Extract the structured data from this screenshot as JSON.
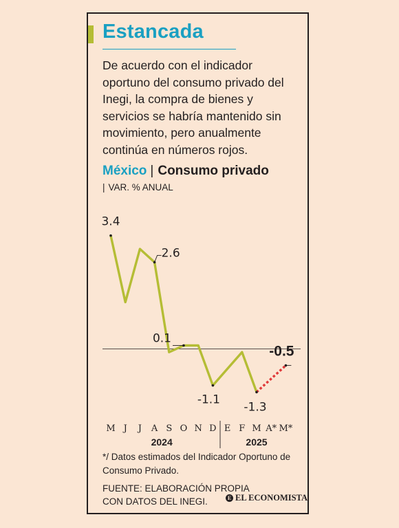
{
  "title": "Estancada",
  "description": "De acuerdo con el indicador oportuno del consumo privado del Inegi, la compra de bienes y servicios se habría mantenido sin movimiento, pero anualmente continúa en números rojos.",
  "subtitle": {
    "country": "México",
    "separator": "|",
    "indicator": "Consumo privado"
  },
  "unit": {
    "bar": "|",
    "label": "VAR. % ANUAL"
  },
  "chart_data": {
    "type": "line",
    "categories": [
      "M",
      "J",
      "J",
      "A",
      "S",
      "O",
      "N",
      "D",
      "E",
      "F",
      "M",
      "A*",
      "M*"
    ],
    "years": [
      {
        "label": "2024",
        "from": 0,
        "to": 7
      },
      {
        "label": "2025",
        "from": 8,
        "to": 12
      }
    ],
    "series": [
      {
        "style": "actual",
        "color": "#b5bd35",
        "values": [
          3.4,
          1.4,
          3.0,
          2.6,
          -0.1,
          0.1,
          0.1,
          -1.1,
          -0.6,
          -0.1,
          -1.3,
          null,
          null
        ]
      },
      {
        "style": "estimated",
        "color": "#e03a3a",
        "values": [
          null,
          null,
          null,
          null,
          null,
          null,
          null,
          null,
          null,
          null,
          -1.3,
          -0.9,
          -0.5
        ]
      }
    ],
    "labels": [
      {
        "index": 0,
        "value": 3.4,
        "text": "3.4"
      },
      {
        "index": 3,
        "value": 2.6,
        "text": "2.6"
      },
      {
        "index": 5,
        "value": 0.1,
        "text": "0.1"
      },
      {
        "index": 7,
        "value": -1.1,
        "text": "-1.1"
      },
      {
        "index": 10,
        "value": -1.3,
        "text": "-1.3"
      },
      {
        "index": 12,
        "value": -0.5,
        "text": "-0.5"
      }
    ],
    "ylim": [
      -1.5,
      3.6
    ],
    "zero_line": true,
    "xlabel": "",
    "ylabel": ""
  },
  "footnote": "*/ Datos estimados del Indicador Oportuno de Consumo Privado.",
  "source": {
    "line1": "FUENTE: ELABORACIÓN PROPIA",
    "line2": "CON DATOS DEL INEGI."
  },
  "brand": {
    "mark": "E",
    "name": "EL ECONOMISTA"
  }
}
